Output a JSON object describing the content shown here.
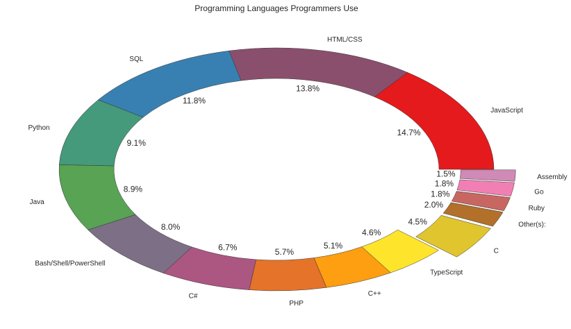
{
  "chart_data": {
    "type": "pie",
    "style": "donut",
    "title": "Programming Languages Programmers Use",
    "start_angle_deg": 0,
    "direction": "counterclockwise",
    "slices": [
      {
        "label": "JavaScript",
        "value": 14.7,
        "pct_label": "14.7%",
        "color": "#e41a1c",
        "exploded": false
      },
      {
        "label": "HTML/CSS",
        "value": 13.8,
        "pct_label": "13.8%",
        "color": "#8b4f6e",
        "exploded": false
      },
      {
        "label": "SQL",
        "value": 11.8,
        "pct_label": "11.8%",
        "color": "#3880b2",
        "exploded": false
      },
      {
        "label": "Python",
        "value": 9.1,
        "pct_label": "9.1%",
        "color": "#449a7a",
        "exploded": false
      },
      {
        "label": "Java",
        "value": 8.9,
        "pct_label": "8.9%",
        "color": "#58a354",
        "exploded": false
      },
      {
        "label": "Bash/Shell/PowerShell",
        "value": 8.0,
        "pct_label": "8.0%",
        "color": "#7d6f86",
        "exploded": false
      },
      {
        "label": "C#",
        "value": 6.7,
        "pct_label": "6.7%",
        "color": "#ac5682",
        "exploded": false
      },
      {
        "label": "PHP",
        "value": 5.7,
        "pct_label": "5.7%",
        "color": "#e5732a",
        "exploded": false
      },
      {
        "label": "C++",
        "value": 5.1,
        "pct_label": "5.1%",
        "color": "#fe9e11",
        "exploded": false
      },
      {
        "label": "TypeScript",
        "value": 4.6,
        "pct_label": "4.6%",
        "color": "#ffe42c",
        "exploded": false
      },
      {
        "label": "C",
        "value": 4.5,
        "pct_label": "4.5%",
        "color": "#e0c52f",
        "exploded": true
      },
      {
        "label": "Other(s):",
        "value": 2.0,
        "pct_label": "2.0%",
        "color": "#b2702b",
        "exploded": true
      },
      {
        "label": "Ruby",
        "value": 1.8,
        "pct_label": "1.8%",
        "color": "#c86762",
        "exploded": true
      },
      {
        "label": "Go",
        "value": 1.8,
        "pct_label": "1.8%",
        "color": "#f27fb4",
        "exploded": true
      },
      {
        "label": "Assembly",
        "value": 1.5,
        "pct_label": "1.5%",
        "color": "#d08ab6",
        "exploded": true
      }
    ]
  }
}
